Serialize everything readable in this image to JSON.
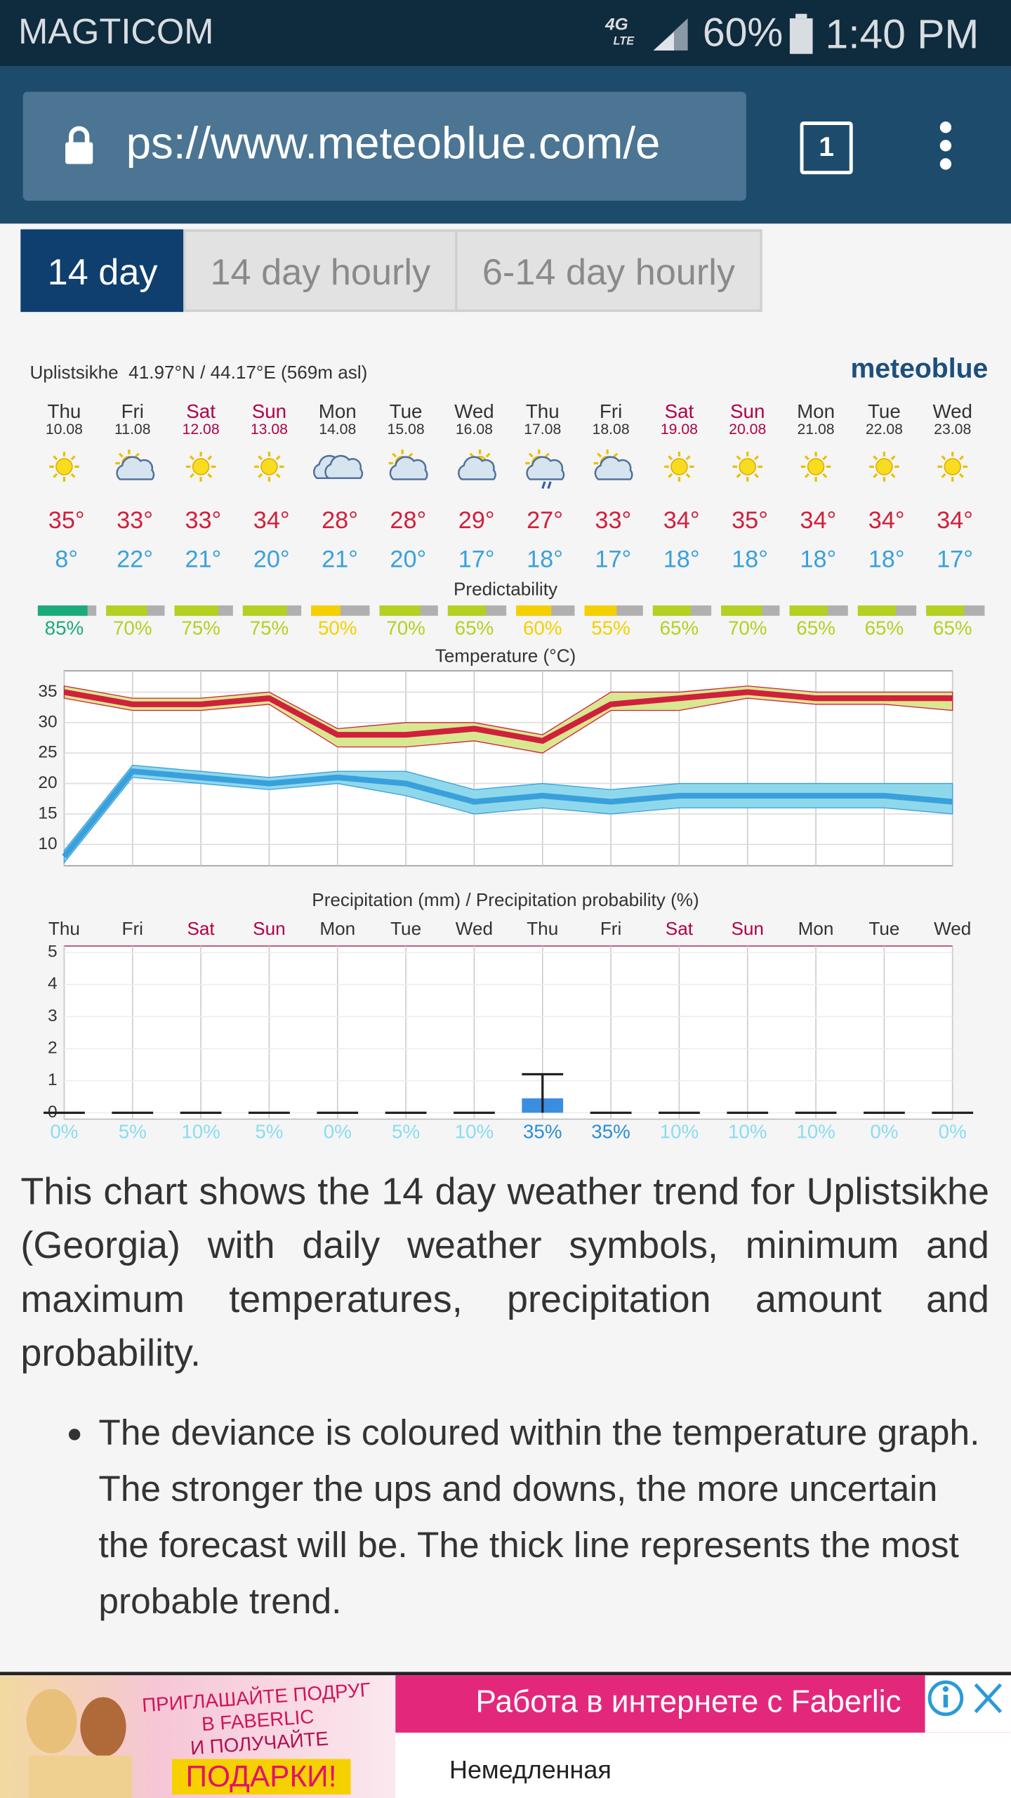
{
  "status_bar": {
    "carrier": "MAGTICOM",
    "network": "4G",
    "network_sub": "LTE",
    "battery": "60%",
    "time": "1:40 PM"
  },
  "browser": {
    "url": "ps://www.meteoblue.com/e",
    "tab_count": "1"
  },
  "tabs": [
    "14 day",
    "14 day hourly",
    "6-14 day hourly"
  ],
  "forecast": {
    "location": "Uplistsikhe  41.97°N / 44.17°E (569m asl)",
    "brand": "meteoblue",
    "days": [
      "Thu",
      "Fri",
      "Sat",
      "Sun",
      "Mon",
      "Tue",
      "Wed",
      "Thu",
      "Fri",
      "Sat",
      "Sun",
      "Mon",
      "Tue",
      "Wed"
    ],
    "dates": [
      "10.08",
      "11.08",
      "12.08",
      "13.08",
      "14.08",
      "15.08",
      "16.08",
      "17.08",
      "18.08",
      "19.08",
      "20.08",
      "21.08",
      "22.08",
      "23.08"
    ],
    "day_colors": [
      "#333333",
      "#333333",
      "#b0004a",
      "#b0004a",
      "#333333",
      "#333333",
      "#333333",
      "#333333",
      "#333333",
      "#b0004a",
      "#b0004a",
      "#333333",
      "#333333",
      "#333333"
    ],
    "predictability": {
      "title": "Predictability",
      "xlim": [
        0,
        100
      ],
      "values": [
        85,
        70,
        75,
        75,
        50,
        70,
        65,
        60,
        55,
        65,
        70,
        65,
        65,
        65
      ],
      "value_labels": [
        "85%",
        "70%",
        "75%",
        "75%",
        "50%",
        "70%",
        "65%",
        "60%",
        "55%",
        "65%",
        "70%",
        "65%",
        "65%",
        "65%"
      ],
      "colors": [
        "#1aab7a",
        "#b5d020",
        "#b5d020",
        "#b5d020",
        "#f5d000",
        "#b5d020",
        "#b5d020",
        "#f5d000",
        "#f5d000",
        "#b5d020",
        "#b5d020",
        "#b5d020",
        "#b5d020",
        "#b5d020"
      ]
    }
  },
  "chart_data": [
    {
      "type": "line",
      "title": "Temperature (°C)",
      "categories": [
        "10.08",
        "11.08",
        "12.08",
        "13.08",
        "14.08",
        "15.08",
        "16.08",
        "17.08",
        "18.08",
        "19.08",
        "20.08",
        "21.08",
        "22.08",
        "23.08"
      ],
      "ylim": [
        6.5,
        38.5
      ],
      "yticks": [
        10,
        15,
        20,
        25,
        30,
        35
      ],
      "grid": true,
      "series": [
        {
          "name": "max",
          "color": "#d0203c",
          "band_color": "#d8e890",
          "values": [
            35,
            33,
            33,
            34,
            28,
            28,
            29,
            27,
            33,
            34,
            35,
            34,
            34,
            34
          ],
          "value_labels": [
            "35°",
            "33°",
            "33°",
            "34°",
            "28°",
            "28°",
            "29°",
            "27°",
            "33°",
            "34°",
            "35°",
            "34°",
            "34°",
            "34°"
          ],
          "range_high": [
            36,
            34,
            34,
            35,
            29,
            30,
            30,
            28,
            35,
            35,
            36,
            35,
            35,
            35
          ],
          "range_low": [
            34,
            32,
            32,
            33,
            26,
            26,
            27,
            25,
            32,
            32,
            34,
            33,
            33,
            32
          ]
        },
        {
          "name": "min",
          "color": "#3aa0dc",
          "band_color": "#8fd8ec",
          "values": [
            8,
            22,
            21,
            20,
            21,
            20,
            17,
            18,
            17,
            18,
            18,
            18,
            18,
            17
          ],
          "value_labels": [
            "8°",
            "22°",
            "21°",
            "20°",
            "21°",
            "20°",
            "17°",
            "18°",
            "17°",
            "18°",
            "18°",
            "18°",
            "18°",
            "17°"
          ],
          "range_high": [
            9,
            23,
            22,
            21,
            22,
            22,
            19,
            20,
            19,
            20,
            20,
            20,
            20,
            20
          ],
          "range_low": [
            7,
            21,
            20,
            19,
            20,
            18,
            15,
            16,
            15,
            16,
            16,
            16,
            16,
            15
          ]
        }
      ]
    },
    {
      "type": "bar",
      "title": "Precipitation (mm) / Precipitation probability (%)",
      "categories": [
        "Thu",
        "Fri",
        "Sat",
        "Sun",
        "Mon",
        "Tue",
        "Wed",
        "Thu",
        "Fri",
        "Sat",
        "Sun",
        "Mon",
        "Tue",
        "Wed"
      ],
      "values": [
        0,
        0,
        0,
        0,
        0,
        0,
        0,
        0.45,
        0,
        0,
        0,
        0,
        0,
        0
      ],
      "errors": [
        0,
        0,
        0,
        0,
        0,
        0,
        0,
        0.75,
        0,
        0,
        0,
        0,
        0,
        0
      ],
      "color": "#3a8ee0",
      "ylim": [
        -0.2,
        5.2
      ],
      "yticks": [
        0,
        1,
        2,
        3,
        4,
        5
      ],
      "grid": true,
      "probability": {
        "values": [
          0,
          5,
          10,
          5,
          0,
          5,
          10,
          35,
          35,
          10,
          10,
          10,
          0,
          0
        ],
        "value_labels": [
          "0%",
          "5%",
          "10%",
          "5%",
          "0%",
          "5%",
          "10%",
          "35%",
          "35%",
          "10%",
          "10%",
          "10%",
          "0%",
          "0%"
        ],
        "colors": [
          "#8adcf0",
          "#8adcf0",
          "#8adcf0",
          "#8adcf0",
          "#8adcf0",
          "#8adcf0",
          "#8adcf0",
          "#2a8ed8",
          "#2a8ed8",
          "#8adcf0",
          "#8adcf0",
          "#8adcf0",
          "#8adcf0",
          "#8adcf0"
        ]
      }
    }
  ],
  "article": {
    "paragraph": "This chart shows the 14 day weather trend for Uplistsikhe (Georgia) with daily weather symbols, minimum and maximum temperatures, precipitation amount and probability.",
    "bullets": [
      "The deviance is coloured within the temperature graph. The stronger the ups and downs, the more uncertain the forecast will be. The thick line represents the most probable trend."
    ]
  },
  "ad": {
    "image_lines": [
      "ПРИГЛАШАЙТЕ ПОДРУГ",
      "В FABERLIC",
      "И ПОЛУЧАЙТЕ",
      "ПОДАРКИ!"
    ],
    "headline": "Работа в интернете с Faberlic",
    "body": "Немедленная"
  }
}
